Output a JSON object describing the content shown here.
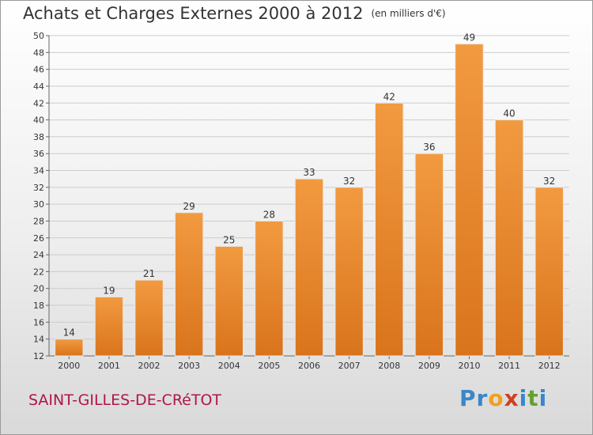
{
  "title": "Achats et Charges Externes 2000 à 2012",
  "unit": "(en milliers d'€)",
  "subject": "SAINT-GILLES-DE-CRéTOT",
  "logo": {
    "text": "Proxiti",
    "letters": [
      "P",
      "r",
      "o",
      "x",
      "i",
      "t",
      "i"
    ],
    "colors": [
      "#3a87c8",
      "#3a87c8",
      "#f0a020",
      "#d04020",
      "#3a87c8",
      "#66a030",
      "#3a87c8"
    ]
  },
  "colors": {
    "bar": "#f29a40",
    "bar_dark": "#d9741c",
    "grid": "#cccccc"
  },
  "chart_data": {
    "type": "bar",
    "title": "Achats et Charges Externes 2000 à 2012",
    "subtitle": "(en milliers d'€)",
    "xlabel": "",
    "ylabel": "",
    "categories": [
      "2000",
      "2001",
      "2002",
      "2003",
      "2004",
      "2005",
      "2006",
      "2007",
      "2008",
      "2009",
      "2010",
      "2011",
      "2012"
    ],
    "values": [
      14,
      19,
      21,
      29,
      25,
      28,
      33,
      32,
      42,
      36,
      49,
      40,
      32
    ],
    "ylim": [
      12,
      50
    ],
    "yticks": [
      12,
      14,
      16,
      18,
      20,
      22,
      24,
      26,
      28,
      30,
      32,
      34,
      36,
      38,
      40,
      42,
      44,
      46,
      48,
      50
    ],
    "grid": true,
    "data_labels": true
  }
}
